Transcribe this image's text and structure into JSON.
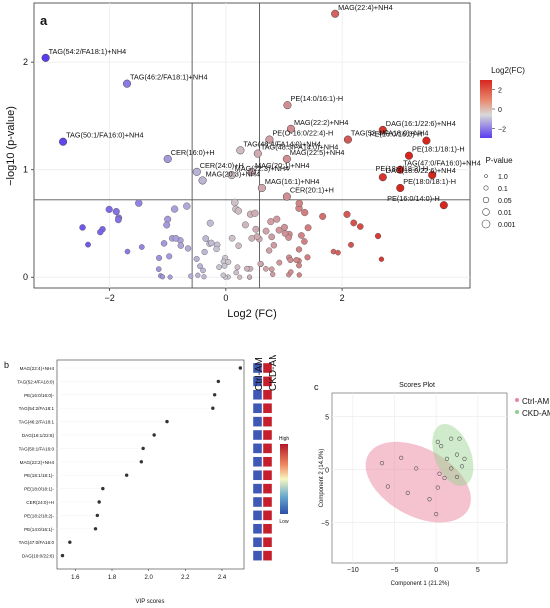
{
  "figure": {
    "panel_a_label": "a",
    "panel_b_label": "b",
    "panel_c_label": "c"
  },
  "chart_data": [
    {
      "type": "scatter",
      "panel": "a",
      "xlabel": "Log2 (FC)",
      "ylabel": "−log10 (p-value)",
      "xticks": [
        "−2",
        "0",
        "2"
      ],
      "xtick_values": [
        -2,
        0,
        2
      ],
      "yticks": [
        "0",
        "1",
        "2"
      ],
      "ytick_values": [
        0,
        1,
        2
      ],
      "xlim": [
        -3.3,
        4.2
      ],
      "ylim": [
        -0.1,
        2.55
      ],
      "ref_lines": {
        "x": [
          -0.58,
          0.58
        ],
        "y": [
          0.72
        ]
      },
      "colorbar": {
        "title": "Log2(FC)",
        "ticks": [
          "2",
          "0",
          "−2"
        ],
        "tick_values": [
          2,
          0,
          -2
        ]
      },
      "size_legend": {
        "title": "P-value",
        "items": [
          "1.0",
          "0.1",
          "0.05",
          "0.01",
          "0.001"
        ]
      },
      "labeled_points": [
        {
          "label": "MAG(22:4)+NH4",
          "x": 1.88,
          "y": 2.45
        },
        {
          "label": "TAG(54:2/FA18:1)+NH4",
          "x": -3.1,
          "y": 2.04
        },
        {
          "label": "TAG(46:2/FA18:1)+NH4",
          "x": -1.7,
          "y": 1.8
        },
        {
          "label": "PE(14:0/16:1)-H",
          "x": 1.06,
          "y": 1.6
        },
        {
          "label": "MAG(22:2)+NH4",
          "x": 1.12,
          "y": 1.38
        },
        {
          "label": "DAG(16:1/22:6)+NH4",
          "x": 2.7,
          "y": 1.37
        },
        {
          "label": "PE(16:0/16:0)-H",
          "x": 3.45,
          "y": 1.27
        },
        {
          "label": "PE(O-16:0/22:4)-H",
          "x": 0.75,
          "y": 1.28
        },
        {
          "label": "TAG(52:4/FA18:0)+NH4",
          "x": 2.1,
          "y": 1.28
        },
        {
          "label": "TAG(50:1/FA16:0)+NH4",
          "x": -2.8,
          "y": 1.26
        },
        {
          "label": "TAG(48:4/FA14:0)+NH4",
          "x": 0.25,
          "y": 1.18
        },
        {
          "label": "TAG(48:3/FA14:0)+NH4",
          "x": 0.55,
          "y": 1.15
        },
        {
          "label": "PE(18:1/18:1)-H",
          "x": 3.15,
          "y": 1.13
        },
        {
          "label": "CER(16:0)+H",
          "x": -1.0,
          "y": 1.1
        },
        {
          "label": "MAG(22:5)+NH4",
          "x": 1.05,
          "y": 1.1
        },
        {
          "label": "TAG(47:0/FA16:0)+NH4",
          "x": 3.0,
          "y": 1.0
        },
        {
          "label": "PE(18:2/18:2)-H",
          "x": 3.55,
          "y": 0.95
        },
        {
          "label": "MAG(20:1)+NH4",
          "x": 0.45,
          "y": 0.98
        },
        {
          "label": "CER(24:0)+H",
          "x": -0.5,
          "y": 0.98
        },
        {
          "label": "MAG(22:3)+NH4",
          "x": 0.1,
          "y": 0.95
        },
        {
          "label": "DAG(18:0/22:6)+NH4",
          "x": 2.7,
          "y": 0.93
        },
        {
          "label": "MAG(20:3)+NH4",
          "x": -0.4,
          "y": 0.9
        },
        {
          "label": "PE(18:0/18:1)-H",
          "x": 3.0,
          "y": 0.83
        },
        {
          "label": "MAG(16:1)+NH4",
          "x": 0.62,
          "y": 0.83
        },
        {
          "label": "CER(20:1)+H",
          "x": 1.05,
          "y": 0.75
        },
        {
          "label": "PE(16:0/14:0)-H",
          "x": 3.75,
          "y": 0.67
        }
      ]
    },
    {
      "type": "dot",
      "panel": "b",
      "xlabel": "VIP scores",
      "xticks": [
        "1.6",
        "1.8",
        "2.0",
        "2.2",
        "2.4"
      ],
      "xtick_values": [
        1.6,
        1.8,
        2.0,
        2.2,
        2.4
      ],
      "xlim": [
        1.5,
        2.52
      ],
      "column_headers": [
        "Ctrl-AM",
        "CKD-AM"
      ],
      "colorbar": {
        "high": "High",
        "low": "Low"
      },
      "categories": [
        "MAG(22:4)+NH4",
        "TAG(52:4/FA18:0)",
        "PE(16:0/16:0)-",
        "TAG(54:2/FA18:1",
        "TAG(46:2/FA18:1",
        "DAG(16:1/22:6)",
        "TAG(50:1/FA16:0",
        "MAG(22:2)+NH4",
        "PE(18:1/18:1)-",
        "PE(18:0/18:1)-",
        "CER(24:0)+H",
        "PE(18:2/18:2)-",
        "PE(14:0/16:1)-",
        "TAG(47:0/FA16:0",
        "DAG(18:0/22:6)"
      ],
      "values": [
        2.5,
        2.38,
        2.36,
        2.35,
        2.1,
        2.03,
        1.97,
        1.96,
        1.88,
        1.75,
        1.73,
        1.72,
        1.71,
        1.57,
        1.53
      ]
    },
    {
      "type": "scatter",
      "panel": "c",
      "title": "Scores Plot",
      "xlabel": "Component 1 (21.2%)",
      "ylabel": "Component 2 (14.9%)",
      "xticks": [
        "−10",
        "−5",
        "0",
        "5"
      ],
      "xtick_values": [
        -10,
        -5,
        0,
        5
      ],
      "yticks": [
        "5",
        "0",
        "−5"
      ],
      "ytick_values": [
        5,
        0,
        -5
      ],
      "xlim": [
        -12.5,
        8.5
      ],
      "ylim": [
        -8.8,
        7.2
      ],
      "legend": {
        "placement": "top-right",
        "items": [
          "Ctrl-AM",
          "CKD-AM"
        ]
      },
      "series": [
        {
          "name": "Ctrl-AM",
          "color": "#e8889c",
          "points": [
            [
              -6.5,
              0.6
            ],
            [
              -4.2,
              1.1
            ],
            [
              -5.8,
              -1.6
            ],
            [
              -3.4,
              -2.2
            ],
            [
              0.4,
              -0.4
            ],
            [
              1.0,
              -0.8
            ],
            [
              0.2,
              -1.7
            ],
            [
              -2.4,
              0.1
            ],
            [
              -0.8,
              -2.8
            ],
            [
              0.0,
              -4.2
            ]
          ]
        },
        {
          "name": "CKD-AM",
          "color": "#8fcf8f",
          "points": [
            [
              0.6,
              2.2
            ],
            [
              1.8,
              2.9
            ],
            [
              2.8,
              2.9
            ],
            [
              0.2,
              2.6
            ],
            [
              1.3,
              1.0
            ],
            [
              2.5,
              1.4
            ],
            [
              3.1,
              0.3
            ],
            [
              1.8,
              0.1
            ],
            [
              2.5,
              -0.7
            ],
            [
              3.4,
              1.0
            ]
          ]
        }
      ]
    }
  ]
}
